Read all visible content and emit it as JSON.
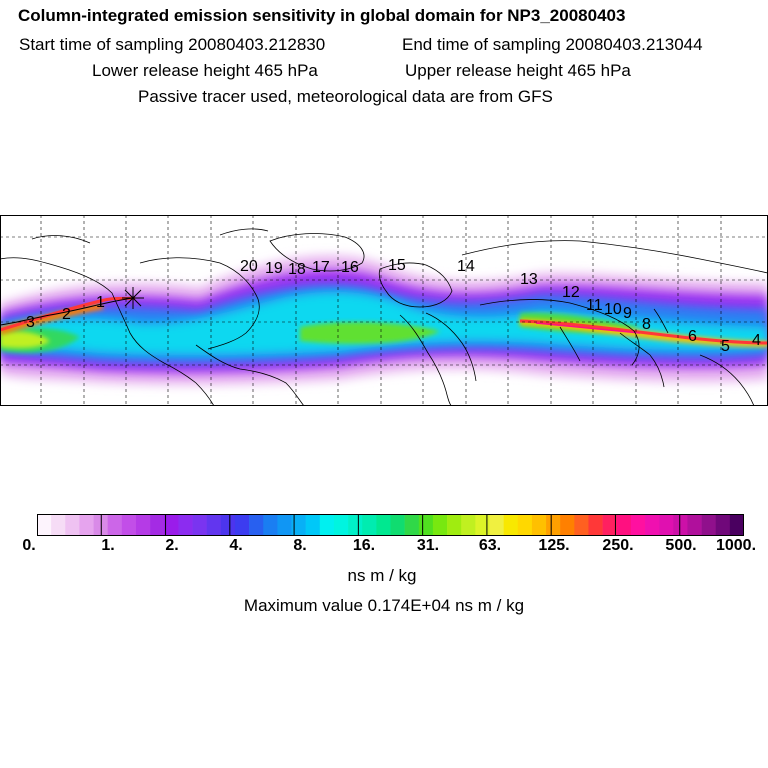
{
  "header": {
    "title": "Column-integrated emission sensitivity in global domain for NP3_20080403",
    "start_label": "Start time of sampling 20080403.212830",
    "end_label": "End time of sampling 20080403.213044",
    "lower_label": "Lower release height  465 hPa",
    "upper_label": "Upper release height  465 hPa",
    "tracer_label": "Passive tracer used, meteorological data are from GFS"
  },
  "map": {
    "trajectory_labels": [
      {
        "text": "1"
      },
      {
        "text": "2"
      },
      {
        "text": "3"
      },
      {
        "text": "4"
      },
      {
        "text": "5"
      },
      {
        "text": "6"
      },
      {
        "text": "8"
      },
      {
        "text": "9"
      },
      {
        "text": "10"
      },
      {
        "text": "11"
      },
      {
        "text": "12"
      },
      {
        "text": "13"
      },
      {
        "text": "14"
      },
      {
        "text": "15"
      },
      {
        "text": "16"
      },
      {
        "text": "17"
      },
      {
        "text": "18"
      },
      {
        "text": "19"
      },
      {
        "text": "20"
      }
    ]
  },
  "colorbar": {
    "ticks": [
      "0.",
      "1.",
      "2.",
      "4.",
      "8.",
      "16.",
      "31.",
      "63.",
      "125.",
      "250.",
      "500.",
      "1000."
    ],
    "colors": [
      "#fdf4fd",
      "#f6dcf6",
      "#efc2f2",
      "#e6a4ee",
      "#d98ae8",
      "#cc66e8",
      "#c24ee8",
      "#b53be6",
      "#a42be4",
      "#9a1cea",
      "#8c2cf0",
      "#7a34f0",
      "#6236ef",
      "#4c35ee",
      "#3c3cf0",
      "#2860f0",
      "#1a7ef2",
      "#1096f4",
      "#08b0f6",
      "#00c8f8",
      "#00f0f0",
      "#00f4e0",
      "#00f0c8",
      "#00ecb0",
      "#00e890",
      "#10dc70",
      "#30d848",
      "#50e020",
      "#78e810",
      "#a0ec10",
      "#c0f020",
      "#dcf428",
      "#f0f040",
      "#f8e800",
      "#ffd800",
      "#ffc000",
      "#ffa000",
      "#ff8000",
      "#ff6020",
      "#ff3838",
      "#ff2060",
      "#ff1080",
      "#ff10a0",
      "#f010b0",
      "#e010b0",
      "#cc10a8",
      "#b0109c",
      "#90108c",
      "#70087a",
      "#4a0060"
    ],
    "unit": "ns m / kg",
    "max_label": "Maximum value  0.174E+04 ns m / kg"
  }
}
